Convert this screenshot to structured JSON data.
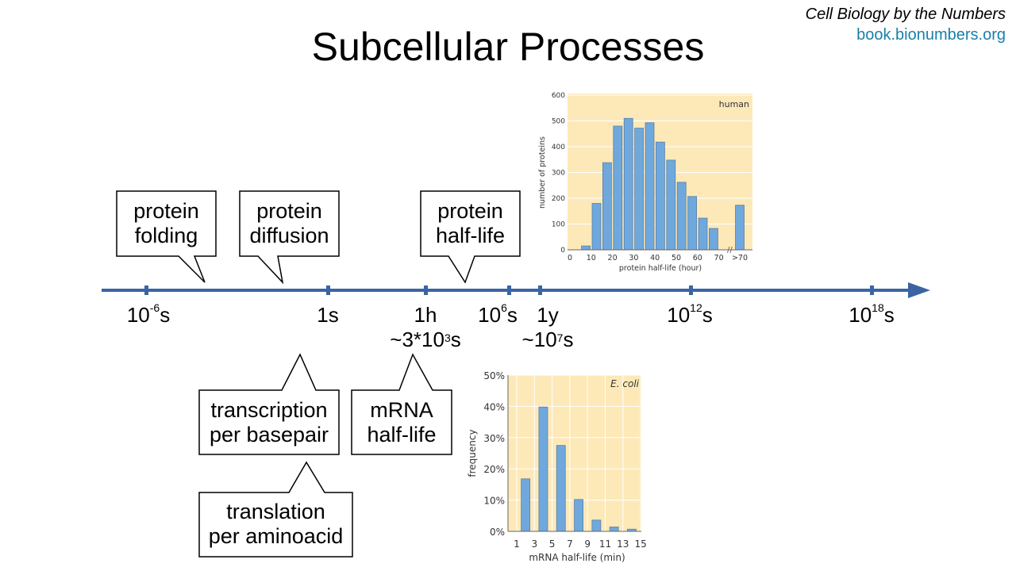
{
  "title": "Subcellular Processes",
  "credit": {
    "book": "Cell Biology by the Numbers",
    "url": "book.bionumbers.org"
  },
  "callouts": {
    "protein_folding": [
      "protein",
      "folding"
    ],
    "protein_diffusion": [
      "protein",
      "diffusion"
    ],
    "protein_half_life": [
      "protein",
      "half-life"
    ],
    "transcription": [
      "transcription",
      "per basepair"
    ],
    "mrna_half_life": [
      "mRNA",
      "half-life"
    ],
    "translation": [
      "translation",
      "per aminoacid"
    ]
  },
  "timeline": {
    "t1": {
      "base": "10",
      "exp": "-6",
      "unit": "s"
    },
    "t2": {
      "label": "1s"
    },
    "t3": {
      "line1": "1h",
      "base": "~3*10",
      "exp": "3",
      "unit": "s"
    },
    "t4": {
      "base": "10",
      "exp": "6",
      "unit": "s"
    },
    "t5": {
      "line1": "1y",
      "base": "~10",
      "exp": "7",
      "unit": "s"
    },
    "t6": {
      "base": "10",
      "exp": "12",
      "unit": "s"
    },
    "t7": {
      "base": "10",
      "exp": "18",
      "unit": "s"
    }
  },
  "colors": {
    "axis": "#3a64a4",
    "bar": "#6fa8dc",
    "bg": "#fde9b8"
  },
  "chart_data": [
    {
      "type": "bar",
      "title": "human",
      "xlabel": "protein half-life (hour)",
      "ylabel": "number of proteins",
      "ylim": [
        0,
        600
      ],
      "yticks": [
        "0",
        "100",
        "200",
        "300",
        "400",
        "500",
        "600"
      ],
      "xticks": [
        "0",
        "10",
        "20",
        "30",
        "40",
        "50",
        "60",
        "70",
        ">70"
      ],
      "x": [
        7.5,
        12.5,
        17.5,
        22.5,
        27.5,
        32.5,
        37.5,
        42.5,
        47.5,
        52.5,
        57.5,
        62.5,
        67.5,
        ">70"
      ],
      "values": [
        15,
        180,
        338,
        480,
        510,
        472,
        493,
        418,
        348,
        262,
        207,
        123,
        83,
        173
      ]
    },
    {
      "type": "bar",
      "title": "E. coli",
      "xlabel": "mRNA half-life (min)",
      "ylabel": "frequency",
      "ylim": [
        0,
        50
      ],
      "yticks": [
        "0%",
        "10%",
        "20%",
        "30%",
        "40%",
        "50%"
      ],
      "xticks": [
        "1",
        "3",
        "5",
        "7",
        "9",
        "11",
        "13",
        "15"
      ],
      "x": [
        2,
        4,
        6,
        8,
        10,
        12,
        14
      ],
      "values": [
        16.8,
        39.8,
        27.5,
        10.2,
        3.6,
        1.4,
        0.7
      ]
    }
  ]
}
